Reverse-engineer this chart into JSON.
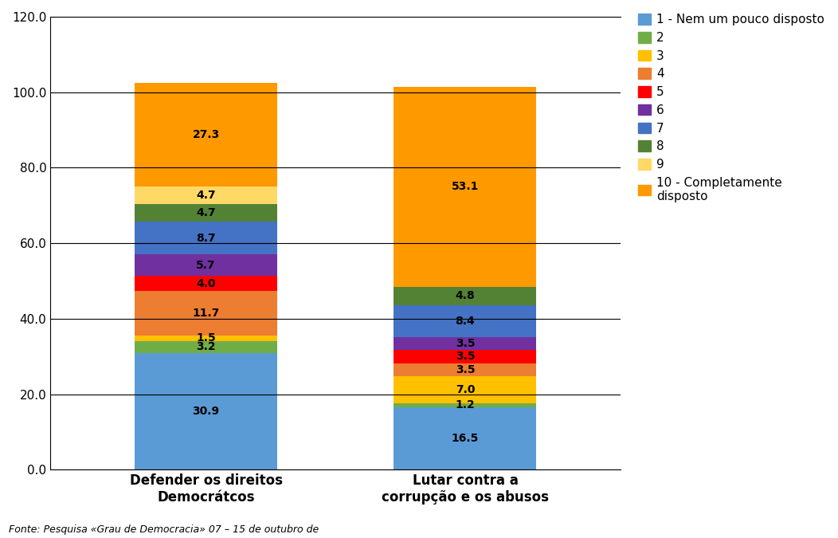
{
  "categories": [
    "Defender os direitos\nDemocrátcos",
    "Lutar contra a\ncorrupção e os abusos"
  ],
  "series": [
    {
      "label": "1 - Nem um pouco disposto",
      "color": "#5B9BD5",
      "values": [
        30.9,
        16.5
      ]
    },
    {
      "label": "2",
      "color": "#70AD47",
      "values": [
        3.2,
        1.2
      ]
    },
    {
      "label": "3",
      "color": "#FFC000",
      "values": [
        1.5,
        7.0
      ]
    },
    {
      "label": "4",
      "color": "#ED7D31",
      "values": [
        11.7,
        3.5
      ]
    },
    {
      "label": "5",
      "color": "#FF0000",
      "values": [
        4.0,
        3.5
      ]
    },
    {
      "label": "6",
      "color": "#7030A0",
      "values": [
        5.7,
        3.5
      ]
    },
    {
      "label": "7",
      "color": "#4472C4",
      "values": [
        8.7,
        8.4
      ]
    },
    {
      "label": "8",
      "color": "#548235",
      "values": [
        4.7,
        4.8
      ]
    },
    {
      "label": "9",
      "color": "#FFD966",
      "values": [
        4.7,
        0.0
      ]
    },
    {
      "label": "10 - Completamente\ndisposto",
      "color": "#FF9900",
      "values": [
        27.3,
        53.1
      ]
    }
  ],
  "ylim": [
    0,
    120
  ],
  "yticks": [
    0.0,
    20.0,
    40.0,
    60.0,
    80.0,
    100.0,
    120.0
  ],
  "bar_width": 0.55,
  "background_color": "#FFFFFF",
  "footer_text": "Fonte: Pesquisa «Grau de Democracia» 07 – 15 de outubro de",
  "label_fontsize": 10,
  "tick_fontsize": 11,
  "legend_fontsize": 11,
  "x_label_fontsize": 12
}
